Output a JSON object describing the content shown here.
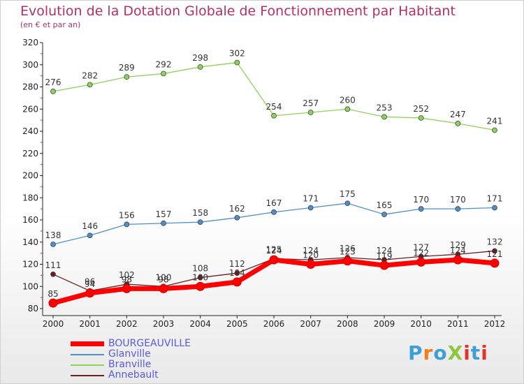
{
  "title": "Evolution de la Dotation Globale de Fonctionnement par Habitant",
  "subtitle": "(en € et par an)",
  "logo": {
    "text": "ProXiti",
    "colors": [
      "#3e9fd6",
      "#f07f1b",
      "#8dc63f",
      "#e2332a"
    ]
  },
  "chart_data": {
    "type": "line",
    "x": [
      "2000",
      "2001",
      "2002",
      "2003",
      "2004",
      "2005",
      "2006",
      "2007",
      "2008",
      "2009",
      "2010",
      "2011",
      "2012"
    ],
    "ylim": [
      80,
      320
    ],
    "yticks": [
      80,
      100,
      120,
      140,
      160,
      180,
      200,
      220,
      240,
      260,
      280,
      300,
      320
    ],
    "grid": false,
    "legend": "bottom-left",
    "series": [
      {
        "name": "BOURGEAUVILLE",
        "color": "#ff0000",
        "values": [
          85,
          94,
          98,
          98,
          100,
          104,
          124,
          120,
          123,
          119,
          122,
          124,
          121
        ]
      },
      {
        "name": "Glanville",
        "color": "#4f8fc7",
        "values": [
          138,
          146,
          156,
          157,
          158,
          162,
          167,
          171,
          175,
          165,
          170,
          170,
          171
        ]
      },
      {
        "name": "Branville",
        "color": "#8fd25a",
        "values": [
          276,
          282,
          289,
          292,
          298,
          302,
          254,
          257,
          260,
          253,
          252,
          247,
          241
        ]
      },
      {
        "name": "Annebault",
        "color": "#6b1f1f",
        "values": [
          111,
          96,
          102,
          100,
          108,
          112,
          125,
          124,
          126,
          124,
          127,
          129,
          132
        ]
      }
    ]
  }
}
